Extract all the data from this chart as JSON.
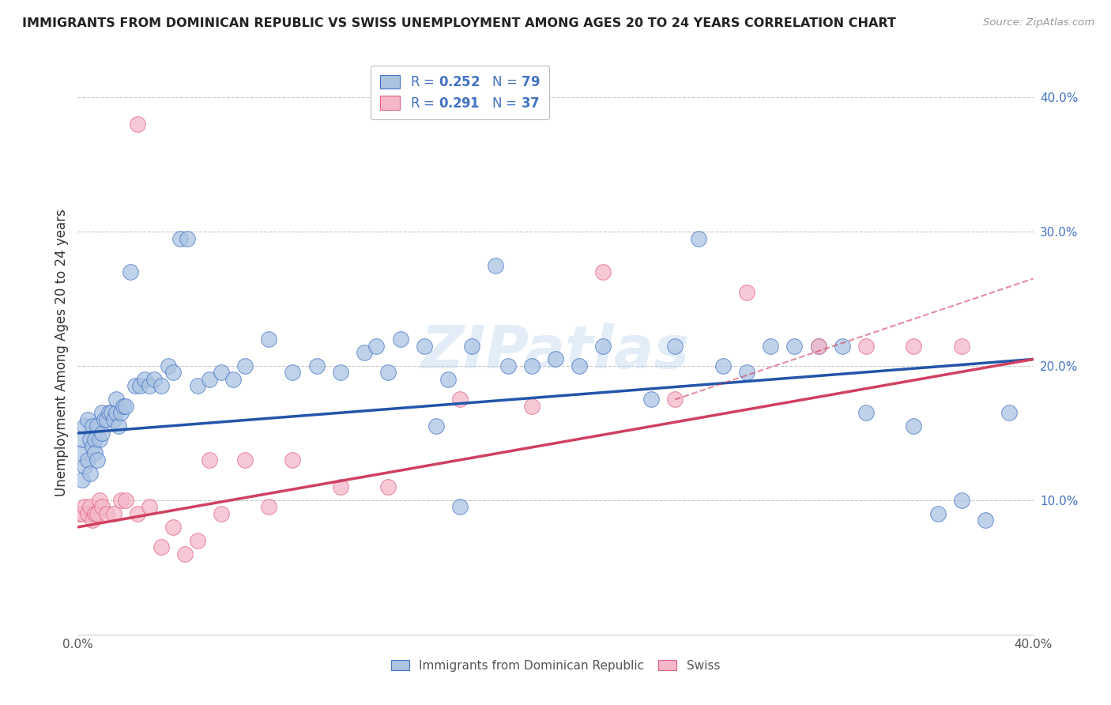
{
  "title": "IMMIGRANTS FROM DOMINICAN REPUBLIC VS SWISS UNEMPLOYMENT AMONG AGES 20 TO 24 YEARS CORRELATION CHART",
  "source": "Source: ZipAtlas.com",
  "ylabel": "Unemployment Among Ages 20 to 24 years",
  "xlim": [
    0.0,
    0.4
  ],
  "ylim": [
    0.0,
    0.42
  ],
  "blue_R": "0.252",
  "blue_N": "79",
  "pink_R": "0.291",
  "pink_N": "37",
  "blue_color": "#aac4e2",
  "pink_color": "#f5b8ca",
  "blue_edge_color": "#4472c4",
  "pink_edge_color": "#e06080",
  "blue_line_color": "#2255aa",
  "pink_line_color": "#d04060",
  "background_color": "#ffffff",
  "grid_color": "#c8c8c8",
  "watermark": "ZIPatlas",
  "blue_x": [
    0.001,
    0.002,
    0.002,
    0.003,
    0.003,
    0.004,
    0.004,
    0.005,
    0.005,
    0.006,
    0.006,
    0.007,
    0.007,
    0.008,
    0.008,
    0.009,
    0.01,
    0.01,
    0.011,
    0.012,
    0.013,
    0.014,
    0.015,
    0.016,
    0.016,
    0.017,
    0.018,
    0.019,
    0.02,
    0.022,
    0.024,
    0.026,
    0.028,
    0.03,
    0.032,
    0.035,
    0.038,
    0.04,
    0.043,
    0.046,
    0.05,
    0.055,
    0.06,
    0.065,
    0.07,
    0.08,
    0.09,
    0.1,
    0.11,
    0.12,
    0.13,
    0.15,
    0.16,
    0.18,
    0.19,
    0.2,
    0.21,
    0.22,
    0.24,
    0.25,
    0.26,
    0.27,
    0.28,
    0.29,
    0.3,
    0.31,
    0.32,
    0.33,
    0.35,
    0.36,
    0.37,
    0.38,
    0.39,
    0.165,
    0.175,
    0.155,
    0.145,
    0.135,
    0.125
  ],
  "blue_y": [
    0.135,
    0.145,
    0.115,
    0.155,
    0.125,
    0.13,
    0.16,
    0.12,
    0.145,
    0.14,
    0.155,
    0.145,
    0.135,
    0.155,
    0.13,
    0.145,
    0.165,
    0.15,
    0.16,
    0.16,
    0.165,
    0.165,
    0.16,
    0.165,
    0.175,
    0.155,
    0.165,
    0.17,
    0.17,
    0.27,
    0.185,
    0.185,
    0.19,
    0.185,
    0.19,
    0.185,
    0.2,
    0.195,
    0.295,
    0.295,
    0.185,
    0.19,
    0.195,
    0.19,
    0.2,
    0.22,
    0.195,
    0.2,
    0.195,
    0.21,
    0.195,
    0.155,
    0.095,
    0.2,
    0.2,
    0.205,
    0.2,
    0.215,
    0.175,
    0.215,
    0.295,
    0.2,
    0.195,
    0.215,
    0.215,
    0.215,
    0.215,
    0.165,
    0.155,
    0.09,
    0.1,
    0.085,
    0.165,
    0.215,
    0.275,
    0.19,
    0.215,
    0.22,
    0.215
  ],
  "pink_x": [
    0.001,
    0.002,
    0.003,
    0.004,
    0.005,
    0.006,
    0.007,
    0.008,
    0.009,
    0.01,
    0.012,
    0.015,
    0.018,
    0.02,
    0.025,
    0.03,
    0.04,
    0.05,
    0.06,
    0.07,
    0.08,
    0.09,
    0.11,
    0.13,
    0.16,
    0.19,
    0.22,
    0.25,
    0.28,
    0.31,
    0.33,
    0.35,
    0.37,
    0.055,
    0.045,
    0.035,
    0.025
  ],
  "pink_y": [
    0.09,
    0.09,
    0.095,
    0.09,
    0.095,
    0.085,
    0.09,
    0.09,
    0.1,
    0.095,
    0.09,
    0.09,
    0.1,
    0.1,
    0.09,
    0.095,
    0.08,
    0.07,
    0.09,
    0.13,
    0.095,
    0.13,
    0.11,
    0.11,
    0.175,
    0.17,
    0.27,
    0.175,
    0.255,
    0.215,
    0.215,
    0.215,
    0.215,
    0.13,
    0.06,
    0.065,
    0.38
  ]
}
